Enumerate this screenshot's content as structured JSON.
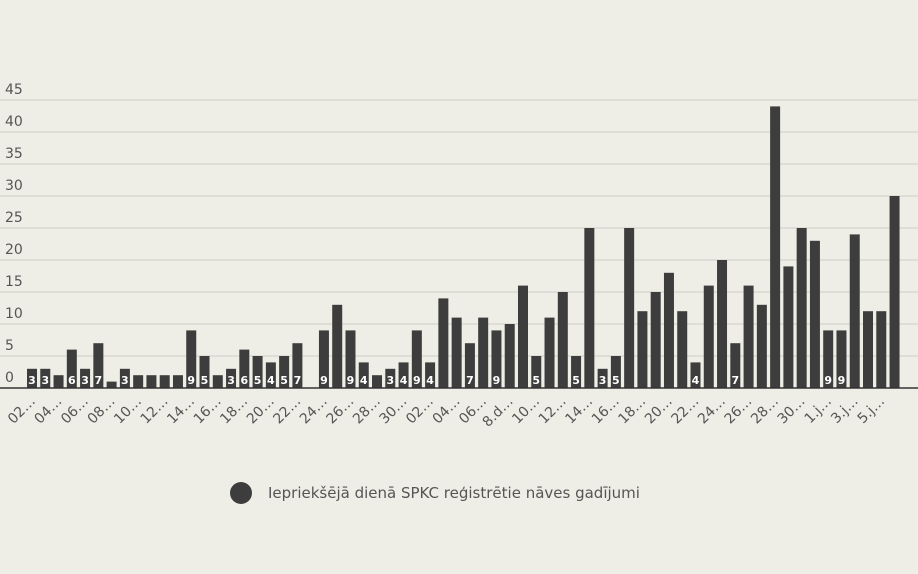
{
  "chart_data": {
    "type": "bar",
    "categories": [
      "02…",
      null,
      "04…",
      null,
      "06…",
      null,
      "08…",
      null,
      "10…",
      null,
      "12…",
      null,
      "14…",
      null,
      "16…",
      null,
      "18…",
      null,
      "20…",
      null,
      "22…",
      null,
      "24…",
      null,
      "26…",
      null,
      "28…",
      null,
      "30…",
      null,
      "02…",
      null,
      "04…",
      null,
      "06…",
      null,
      "8.d…",
      null,
      "10…",
      null,
      "12…",
      null,
      "14…",
      null,
      "16…",
      null,
      "18…",
      null,
      "20…",
      null,
      "22…",
      null,
      "24…",
      null,
      "26…",
      null,
      "28…",
      null,
      "30…",
      null,
      "1.j…",
      null,
      "3.j…",
      null,
      "5.j…",
      null
    ],
    "series": [
      {
        "name": "Iepriekšējā dienā SPKC reģistrētie nāves gadījumi",
        "color": "#3d3d3d",
        "values": [
          3,
          3,
          2,
          6,
          3,
          7,
          1,
          3,
          2,
          2,
          2,
          2,
          9,
          5,
          2,
          3,
          6,
          5,
          4,
          5,
          7,
          0,
          9,
          13,
          9,
          4,
          2,
          3,
          4,
          9,
          4,
          14,
          11,
          7,
          11,
          9,
          10,
          16,
          5,
          11,
          15,
          5,
          25,
          3,
          5,
          25,
          12,
          15,
          18,
          12,
          4,
          16,
          20,
          7,
          16,
          13,
          44,
          19,
          25,
          23,
          9,
          9,
          24,
          12,
          12,
          30
        ],
        "value_labels": [
          "3",
          "3",
          null,
          "6",
          "3",
          "7",
          null,
          "3",
          null,
          null,
          null,
          null,
          "9",
          "5",
          null,
          "3",
          "6",
          "5",
          "4",
          "5",
          "7",
          null,
          "9",
          null,
          "9",
          "4",
          null,
          "3",
          "4",
          "9",
          "4",
          null,
          null,
          "7",
          null,
          "9",
          null,
          null,
          "5",
          null,
          null,
          "5",
          null,
          "3",
          "5",
          null,
          null,
          null,
          null,
          null,
          "4",
          null,
          null,
          "7",
          null,
          null,
          null,
          null,
          null,
          null,
          "9",
          "9",
          null,
          null,
          null,
          null
        ]
      }
    ],
    "ylim": [
      0,
      45
    ],
    "yticks": [
      0,
      5,
      10,
      15,
      20,
      25,
      30,
      35,
      40,
      45
    ],
    "grid": true,
    "legend": "bottom"
  }
}
